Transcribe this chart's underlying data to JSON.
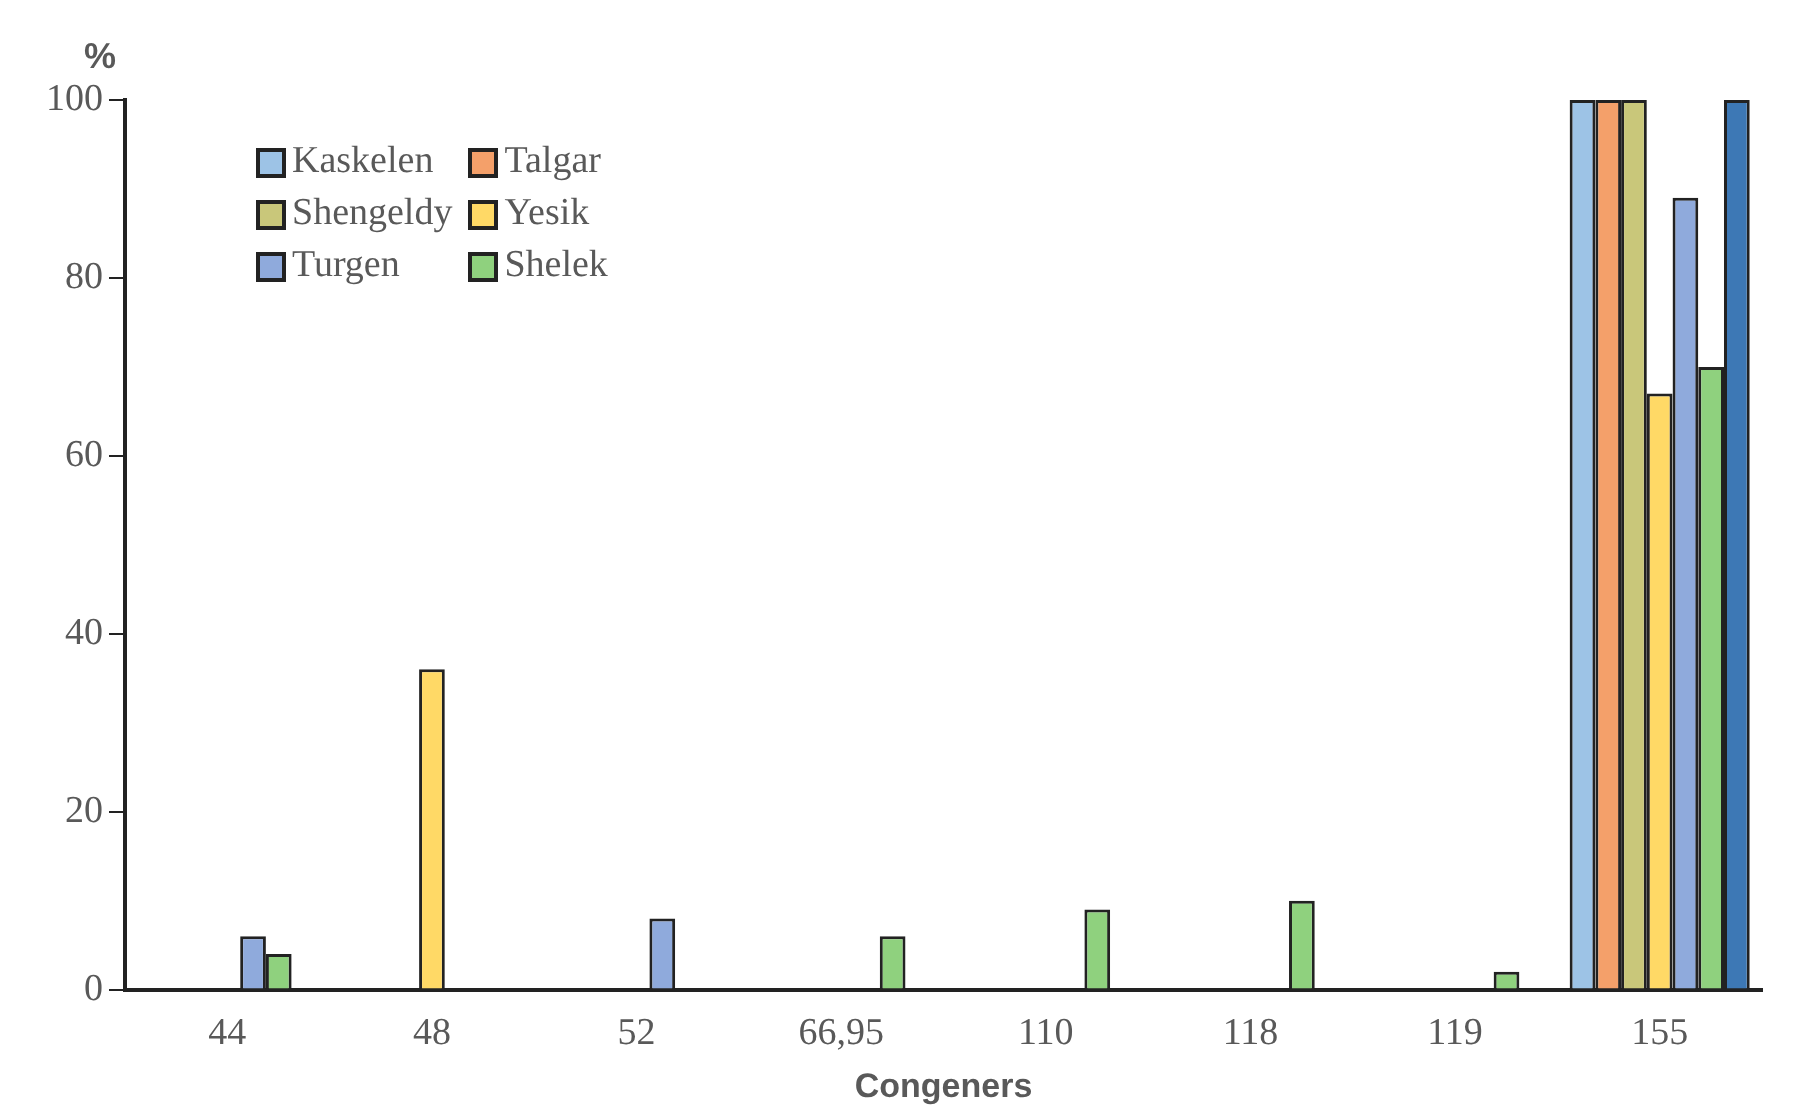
{
  "chart_data": {
    "type": "bar",
    "xlabel": "Congeners",
    "ylabel": "%",
    "categories": [
      "44",
      "48",
      "52",
      "66,95",
      "110",
      "118",
      "119",
      "155"
    ],
    "series": [
      {
        "name": "Kaskelen",
        "color": "#9dc3e6",
        "values": [
          null,
          null,
          null,
          null,
          null,
          null,
          null,
          100
        ]
      },
      {
        "name": "Talgar",
        "color": "#f4a06a",
        "values": [
          null,
          null,
          null,
          null,
          null,
          null,
          null,
          100
        ]
      },
      {
        "name": "Shengeldy",
        "color": "#c9c77a",
        "values": [
          null,
          null,
          null,
          null,
          null,
          null,
          null,
          100
        ]
      },
      {
        "name": "Yesik",
        "color": "#ffd966",
        "values": [
          null,
          36,
          null,
          null,
          null,
          null,
          null,
          67
        ]
      },
      {
        "name": "Turgen",
        "color": "#8faadc",
        "values": [
          6,
          null,
          8,
          null,
          null,
          null,
          null,
          89
        ]
      },
      {
        "name": "Shelek",
        "color": "#8fd17e",
        "values": [
          4,
          null,
          null,
          6,
          9,
          10,
          2,
          70
        ]
      },
      {
        "color": "#3d78b5",
        "values": [
          null,
          null,
          null,
          null,
          null,
          null,
          null,
          100
        ]
      }
    ],
    "ylim": [
      0,
      100
    ],
    "yticks": [
      0,
      20,
      40,
      60,
      80,
      100
    ],
    "grid": false,
    "legend": "top left"
  }
}
